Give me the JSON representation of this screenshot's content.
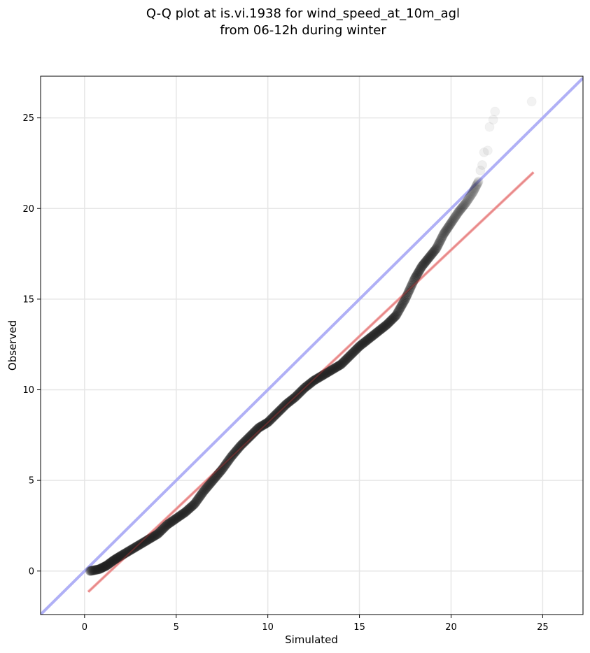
{
  "chart_data": {
    "type": "scatter",
    "title_lines": [
      "Q-Q plot at is.vi.1938 for wind_speed_at_10m_agl",
      "from 06-12h during winter"
    ],
    "xlabel": "Simulated",
    "ylabel": "Observed",
    "xlim": [
      -2.4,
      27.2
    ],
    "ylim": [
      -2.4,
      27.3
    ],
    "xticks": [
      0,
      5,
      10,
      15,
      20,
      25
    ],
    "yticks": [
      0,
      5,
      10,
      15,
      20,
      25
    ],
    "xtick_labels": [
      "0",
      "5",
      "10",
      "15",
      "20",
      "25"
    ],
    "ytick_labels": [
      "0",
      "5",
      "10",
      "15",
      "20",
      "25"
    ],
    "grid": true,
    "reference_line": {
      "description": "1:1 line",
      "color": "#a7a7f5",
      "points": [
        [
          -2.4,
          -2.4
        ],
        [
          27.2,
          27.2
        ]
      ]
    },
    "fit_line": {
      "description": "linear fit",
      "color": "#f5a5a5",
      "points": [
        [
          0.2,
          -1.15
        ],
        [
          24.5,
          22.0
        ]
      ]
    },
    "marker_color": "#222222",
    "series_path": [
      [
        0.3,
        0.0
      ],
      [
        0.8,
        0.1
      ],
      [
        1.2,
        0.3
      ],
      [
        1.6,
        0.6
      ],
      [
        2.0,
        0.85
      ],
      [
        2.5,
        1.15
      ],
      [
        3.0,
        1.45
      ],
      [
        3.5,
        1.75
      ],
      [
        4.0,
        2.05
      ],
      [
        4.5,
        2.55
      ],
      [
        5.0,
        2.9
      ],
      [
        5.5,
        3.25
      ],
      [
        6.0,
        3.7
      ],
      [
        6.5,
        4.4
      ],
      [
        7.0,
        5.0
      ],
      [
        7.5,
        5.6
      ],
      [
        8.0,
        6.3
      ],
      [
        8.5,
        6.9
      ],
      [
        9.0,
        7.4
      ],
      [
        9.5,
        7.9
      ],
      [
        10.0,
        8.2
      ],
      [
        10.5,
        8.7
      ],
      [
        11.0,
        9.2
      ],
      [
        11.5,
        9.6
      ],
      [
        12.0,
        10.1
      ],
      [
        12.5,
        10.5
      ],
      [
        13.0,
        10.8
      ],
      [
        13.5,
        11.1
      ],
      [
        14.0,
        11.4
      ],
      [
        14.5,
        11.9
      ],
      [
        15.0,
        12.4
      ],
      [
        15.5,
        12.8
      ],
      [
        16.0,
        13.2
      ],
      [
        16.5,
        13.6
      ],
      [
        17.0,
        14.1
      ],
      [
        17.5,
        15.0
      ],
      [
        18.0,
        16.1
      ],
      [
        18.4,
        16.8
      ],
      [
        18.8,
        17.3
      ],
      [
        19.2,
        17.8
      ],
      [
        19.6,
        18.6
      ],
      [
        20.0,
        19.2
      ],
      [
        20.4,
        19.8
      ],
      [
        20.8,
        20.3
      ],
      [
        21.2,
        20.9
      ],
      [
        21.5,
        21.5
      ]
    ],
    "points": [
      [
        21.6,
        22.1
      ],
      [
        21.7,
        22.4
      ],
      [
        21.8,
        23.1
      ],
      [
        22.0,
        23.2
      ],
      [
        22.1,
        24.5
      ],
      [
        22.3,
        24.9
      ],
      [
        22.4,
        25.35
      ],
      [
        24.4,
        25.9
      ]
    ]
  }
}
